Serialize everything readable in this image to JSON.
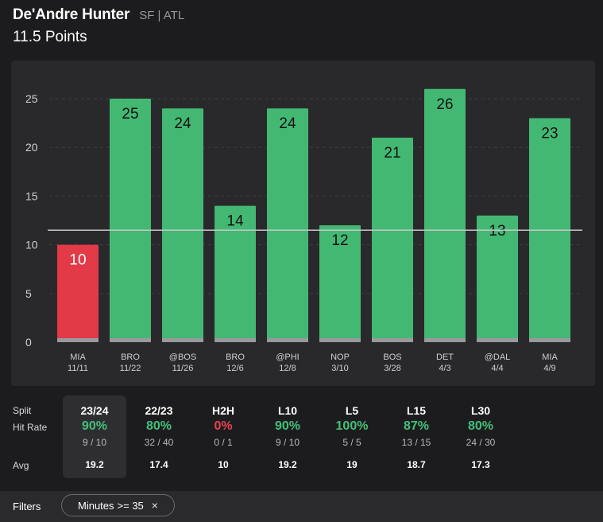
{
  "header": {
    "player_name": "De'Andre Hunter",
    "player_team": "SF | ATL",
    "prop_line": "11.5 Points"
  },
  "chart_data": {
    "type": "bar",
    "title": "11.5 Points",
    "threshold": 11.5,
    "ylim": [
      0,
      25
    ],
    "yticks": [
      "0",
      "5",
      "10",
      "15",
      "20",
      "25"
    ],
    "ytick_values": [
      0,
      5,
      10,
      15,
      20,
      25
    ],
    "grid": true,
    "categories": [
      {
        "opp": "MIA",
        "date": "11/11"
      },
      {
        "opp": "BRO",
        "date": "11/22"
      },
      {
        "opp": "@BOS",
        "date": "11/26"
      },
      {
        "opp": "BRO",
        "date": "12/6"
      },
      {
        "opp": "@PHI",
        "date": "12/8"
      },
      {
        "opp": "NOP",
        "date": "3/10"
      },
      {
        "opp": "BOS",
        "date": "3/28"
      },
      {
        "opp": "DET",
        "date": "4/3"
      },
      {
        "opp": "@DAL",
        "date": "4/4"
      },
      {
        "opp": "MIA",
        "date": "4/9"
      }
    ],
    "values": [
      10,
      25,
      24,
      14,
      24,
      12,
      21,
      26,
      13,
      23
    ],
    "labels": [
      "10",
      "25",
      "24",
      "14",
      "24",
      "12",
      "21",
      "26",
      "13",
      "23"
    ],
    "colors": {
      "over": "#43b873",
      "under": "#e23a46",
      "base": "#9a9a9e"
    }
  },
  "splits": {
    "row_labels": {
      "split": "Split",
      "hit_rate": "Hit Rate",
      "avg": "Avg"
    },
    "columns": [
      {
        "name": "23/24",
        "rate": "90%",
        "frac": "9 / 10",
        "avg": "19.2",
        "status": "green",
        "selected": true
      },
      {
        "name": "22/23",
        "rate": "80%",
        "frac": "32 / 40",
        "avg": "17.4",
        "status": "green",
        "selected": false
      },
      {
        "name": "H2H",
        "rate": "0%",
        "frac": "0 / 1",
        "avg": "10",
        "status": "red",
        "selected": false
      },
      {
        "name": "L10",
        "rate": "90%",
        "frac": "9 / 10",
        "avg": "19.2",
        "status": "green",
        "selected": false
      },
      {
        "name": "L5",
        "rate": "100%",
        "frac": "5 / 5",
        "avg": "19",
        "status": "green",
        "selected": false
      },
      {
        "name": "L15",
        "rate": "87%",
        "frac": "13 / 15",
        "avg": "18.7",
        "status": "green",
        "selected": false
      },
      {
        "name": "L30",
        "rate": "80%",
        "frac": "24 / 30",
        "avg": "17.3",
        "status": "green",
        "selected": false
      }
    ]
  },
  "filters": {
    "label": "Filters",
    "chip": {
      "field": "Minutes",
      "condition": ">= 35",
      "close": "×"
    }
  }
}
